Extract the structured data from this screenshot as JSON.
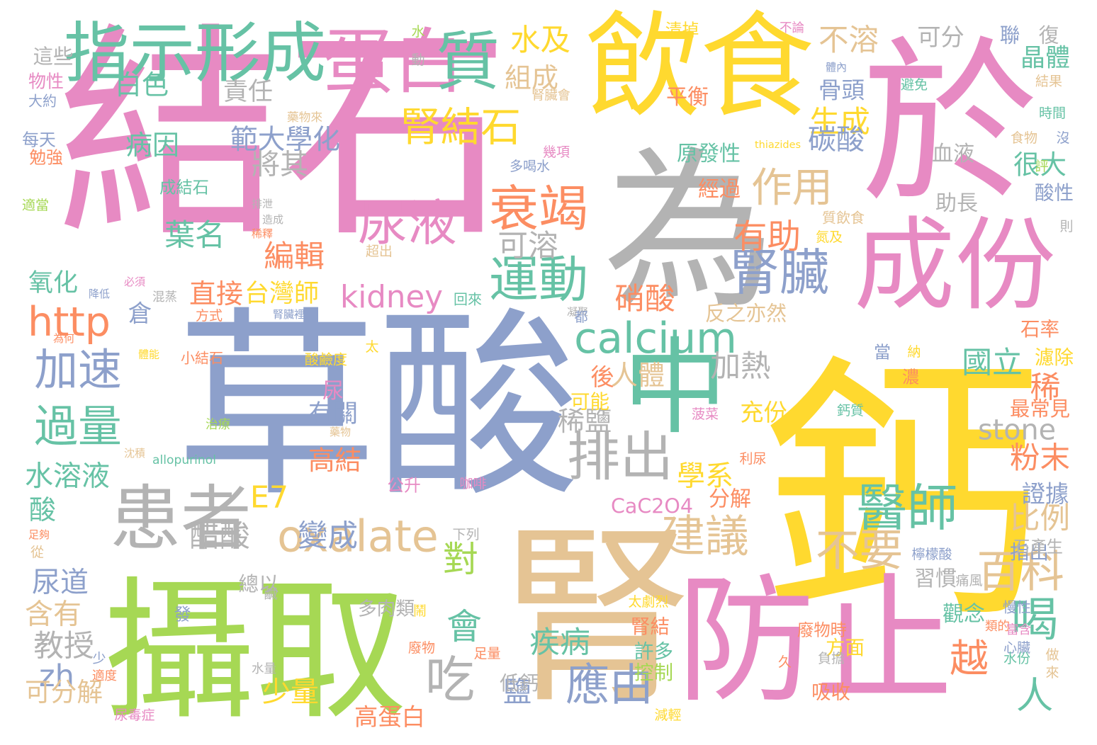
{
  "colors": {
    "pink": "#e78ac3",
    "blue": "#8da0cb",
    "green": "#66c2a5",
    "yellow": "#ffd92f",
    "lime": "#a6d854",
    "orange": "#fc8d62",
    "tan": "#e5c494",
    "gray": "#b3b3b3"
  },
  "words": [
    {
      "text": "結石",
      "color": "pink"
    },
    {
      "text": "草酸",
      "color": "blue"
    },
    {
      "text": "鈣",
      "color": "yellow"
    },
    {
      "text": "攝取",
      "color": "lime"
    },
    {
      "text": "於",
      "color": "pink"
    },
    {
      "text": "為",
      "color": "gray"
    },
    {
      "text": "飲食",
      "color": "yellow"
    },
    {
      "text": "腎",
      "color": "tan"
    },
    {
      "text": "防止",
      "color": "pink"
    },
    {
      "text": "中",
      "color": "green"
    },
    {
      "text": "成份",
      "color": "pink"
    },
    {
      "text": "蛋白",
      "color": "pink"
    },
    {
      "text": "質",
      "color": "green"
    },
    {
      "text": "指示形成",
      "color": "green"
    },
    {
      "text": "患者",
      "color": "gray"
    },
    {
      "text": "腎結石",
      "color": "yellow"
    },
    {
      "text": "尿液",
      "color": "pink"
    },
    {
      "text": "衰竭",
      "color": "orange"
    },
    {
      "text": "作用",
      "color": "tan"
    },
    {
      "text": "calcium",
      "color": "green"
    },
    {
      "text": "oxalate",
      "color": "tan"
    },
    {
      "text": "腎臟",
      "color": "blue"
    },
    {
      "text": "排出",
      "color": "gray"
    },
    {
      "text": "醫師",
      "color": "green"
    },
    {
      "text": "建議",
      "color": "tan"
    },
    {
      "text": "運動",
      "color": "green"
    },
    {
      "text": "加速",
      "color": "blue"
    },
    {
      "text": "過量",
      "color": "green"
    },
    {
      "text": "應由",
      "color": "blue"
    },
    {
      "text": "吃",
      "color": "gray"
    },
    {
      "text": "會",
      "color": "green"
    },
    {
      "text": "對",
      "color": "lime"
    },
    {
      "text": "百科",
      "color": "tan"
    },
    {
      "text": "不要",
      "color": "tan"
    },
    {
      "text": "喝",
      "color": "green"
    },
    {
      "text": "越",
      "color": "orange"
    },
    {
      "text": "人",
      "color": "green"
    },
    {
      "text": "有助",
      "color": "orange"
    },
    {
      "text": "http",
      "color": "orange"
    },
    {
      "text": "zh",
      "color": "blue"
    },
    {
      "text": "kidney",
      "color": "pink"
    },
    {
      "text": "stone",
      "color": "gray"
    },
    {
      "text": "E7",
      "color": "yellow"
    },
    {
      "text": "CaC2O4",
      "color": "pink"
    },
    {
      "text": "台灣師",
      "color": "yellow"
    },
    {
      "text": "直接",
      "color": "orange"
    },
    {
      "text": "範大學化",
      "color": "blue"
    },
    {
      "text": "白色",
      "color": "green"
    },
    {
      "text": "病因",
      "color": "green"
    },
    {
      "text": "責任",
      "color": "gray"
    },
    {
      "text": "水及",
      "color": "yellow"
    },
    {
      "text": "組成",
      "color": "tan"
    },
    {
      "text": "不溶",
      "color": "tan"
    },
    {
      "text": "晶體",
      "color": "green"
    },
    {
      "text": "生成",
      "color": "yellow"
    },
    {
      "text": "碳酸",
      "color": "blue"
    },
    {
      "text": "很大",
      "color": "green"
    },
    {
      "text": "國立",
      "color": "green"
    },
    {
      "text": "稀",
      "color": "orange"
    },
    {
      "text": "粉末",
      "color": "orange"
    },
    {
      "text": "比例",
      "color": "tan"
    },
    {
      "text": "將其",
      "color": "gray"
    },
    {
      "text": "葉名",
      "color": "green"
    },
    {
      "text": "編輯",
      "color": "orange"
    },
    {
      "text": "可溶",
      "color": "gray"
    },
    {
      "text": "加熱",
      "color": "gray"
    },
    {
      "text": "人體",
      "color": "tan"
    },
    {
      "text": "稀鹽",
      "color": "gray"
    },
    {
      "text": "硝酸",
      "color": "orange"
    },
    {
      "text": "學系",
      "color": "yellow"
    },
    {
      "text": "分解",
      "color": "orange"
    },
    {
      "text": "水溶液",
      "color": "green"
    },
    {
      "text": "醋酸",
      "color": "gray"
    },
    {
      "text": "變成",
      "color": "blue"
    },
    {
      "text": "尿道",
      "color": "blue"
    },
    {
      "text": "含有",
      "color": "tan"
    },
    {
      "text": "教授",
      "color": "gray"
    },
    {
      "text": "少量",
      "color": "yellow"
    },
    {
      "text": "可分解",
      "color": "tan"
    },
    {
      "text": "鹽",
      "color": "blue"
    },
    {
      "text": "高蛋白",
      "color": "orange"
    },
    {
      "text": "疾病",
      "color": "green"
    },
    {
      "text": "酸",
      "color": "green"
    },
    {
      "text": "倉",
      "color": "blue"
    },
    {
      "text": "有關",
      "color": "blue"
    },
    {
      "text": "尿",
      "color": "pink"
    },
    {
      "text": "高結",
      "color": "orange"
    },
    {
      "text": "充份",
      "color": "yellow"
    },
    {
      "text": "可能",
      "color": "yellow"
    },
    {
      "text": "後",
      "color": "orange"
    },
    {
      "text": "最常見",
      "color": "orange"
    },
    {
      "text": "氧化",
      "color": "green"
    },
    {
      "text": "原發性",
      "color": "green"
    },
    {
      "text": "經過",
      "color": "orange"
    },
    {
      "text": "平衡",
      "color": "orange"
    },
    {
      "text": "可分",
      "color": "gray"
    },
    {
      "text": "骨頭",
      "color": "blue"
    },
    {
      "text": "酸性",
      "color": "blue"
    },
    {
      "text": "血液",
      "color": "gray"
    },
    {
      "text": "助長",
      "color": "gray"
    },
    {
      "text": "反之亦然",
      "color": "tan"
    },
    {
      "text": "石率",
      "color": "orange"
    },
    {
      "text": "濾除",
      "color": "yellow"
    },
    {
      "text": "證據",
      "color": "blue"
    },
    {
      "text": "指出",
      "color": "blue"
    },
    {
      "text": "習慣",
      "color": "gray"
    },
    {
      "text": "觀念",
      "color": "green"
    },
    {
      "text": "石產生",
      "color": "gray"
    },
    {
      "text": "吸收",
      "color": "orange"
    },
    {
      "text": "許多",
      "color": "green"
    },
    {
      "text": "控制",
      "color": "lime"
    },
    {
      "text": "低鈣",
      "color": "gray"
    },
    {
      "text": "多肉類",
      "color": "gray"
    },
    {
      "text": "總以",
      "color": "gray"
    },
    {
      "text": "腎結",
      "color": "orange"
    },
    {
      "text": "廢物時",
      "color": "orange"
    },
    {
      "text": "方面",
      "color": "yellow"
    },
    {
      "text": "這些",
      "color": "gray"
    },
    {
      "text": "物性",
      "color": "pink"
    },
    {
      "text": "大約",
      "color": "blue"
    },
    {
      "text": "每天",
      "color": "blue"
    },
    {
      "text": "勉強",
      "color": "orange"
    },
    {
      "text": "適當",
      "color": "lime"
    },
    {
      "text": "成結石",
      "color": "green"
    },
    {
      "text": "排泄",
      "color": "gray"
    },
    {
      "text": "造成",
      "color": "gray"
    },
    {
      "text": "稀釋",
      "color": "orange"
    },
    {
      "text": "超出",
      "color": "tan"
    },
    {
      "text": "必須",
      "color": "pink"
    },
    {
      "text": "降低",
      "color": "blue"
    },
    {
      "text": "混蒸",
      "color": "gray"
    },
    {
      "text": "回來",
      "color": "green"
    },
    {
      "text": "方式",
      "color": "orange"
    },
    {
      "text": "腎臟裡",
      "color": "blue"
    },
    {
      "text": "為何",
      "color": "orange"
    },
    {
      "text": "體能",
      "color": "yellow"
    },
    {
      "text": "小結石",
      "color": "orange"
    },
    {
      "text": "酸鹼度",
      "color": "yellow"
    },
    {
      "text": "治療",
      "color": "lime"
    },
    {
      "text": "藥物",
      "color": "tan"
    },
    {
      "text": "沈積",
      "color": "tan"
    },
    {
      "text": "allopurinol",
      "color": "green"
    },
    {
      "text": "公升",
      "color": "pink"
    },
    {
      "text": "咖啡",
      "color": "pink"
    },
    {
      "text": "利尿",
      "color": "orange"
    },
    {
      "text": "菠菜",
      "color": "pink"
    },
    {
      "text": "鈣質",
      "color": "green"
    },
    {
      "text": "濃",
      "color": "orange"
    },
    {
      "text": "納",
      "color": "yellow"
    },
    {
      "text": "當",
      "color": "blue"
    },
    {
      "text": "凝聚",
      "color": "gray"
    },
    {
      "text": "都",
      "color": "blue"
    },
    {
      "text": "太",
      "color": "yellow"
    },
    {
      "text": "下列",
      "color": "gray"
    },
    {
      "text": "水",
      "color": "lime"
    },
    {
      "text": "動",
      "color": "gray"
    },
    {
      "text": "藥物來",
      "color": "tan"
    },
    {
      "text": "幾項",
      "color": "pink"
    },
    {
      "text": "多喝水",
      "color": "blue"
    },
    {
      "text": "腎臟會",
      "color": "tan"
    },
    {
      "text": "清掉",
      "color": "yellow"
    },
    {
      "text": "不論",
      "color": "pink"
    },
    {
      "text": "體內",
      "color": "blue"
    },
    {
      "text": "thiazides",
      "color": "yellow"
    },
    {
      "text": "質飲食",
      "color": "tan"
    },
    {
      "text": "氮及",
      "color": "yellow"
    },
    {
      "text": "聯",
      "color": "blue"
    },
    {
      "text": "復",
      "color": "gray"
    },
    {
      "text": "避免",
      "color": "green"
    },
    {
      "text": "結果",
      "color": "tan"
    },
    {
      "text": "時間",
      "color": "green"
    },
    {
      "text": "食物",
      "color": "tan"
    },
    {
      "text": "沒",
      "color": "blue"
    },
    {
      "text": "評",
      "color": "lime"
    },
    {
      "text": "則",
      "color": "gray"
    },
    {
      "text": "檸檬酸",
      "color": "blue"
    },
    {
      "text": "痛風",
      "color": "gray"
    },
    {
      "text": "慢性",
      "color": "blue"
    },
    {
      "text": "類的",
      "color": "orange"
    },
    {
      "text": "富含",
      "color": "pink"
    },
    {
      "text": "心臟",
      "color": "blue"
    },
    {
      "text": "水份",
      "color": "green"
    },
    {
      "text": "做",
      "color": "tan"
    },
    {
      "text": "來",
      "color": "tan"
    },
    {
      "text": "負擔",
      "color": "gray"
    },
    {
      "text": "久",
      "color": "orange"
    },
    {
      "text": "鹹",
      "color": "gray"
    },
    {
      "text": "太劇烈",
      "color": "yellow"
    },
    {
      "text": "鬧",
      "color": "yellow"
    },
    {
      "text": "廢物",
      "color": "orange"
    },
    {
      "text": "足量",
      "color": "orange"
    },
    {
      "text": "減輕",
      "color": "yellow"
    },
    {
      "text": "尿毒症",
      "color": "pink"
    },
    {
      "text": "適度",
      "color": "orange"
    },
    {
      "text": "少",
      "color": "blue"
    },
    {
      "text": "水量",
      "color": "gray"
    },
    {
      "text": "發",
      "color": "blue"
    },
    {
      "text": "從",
      "color": "tan"
    },
    {
      "text": "足夠",
      "color": "orange"
    }
  ]
}
